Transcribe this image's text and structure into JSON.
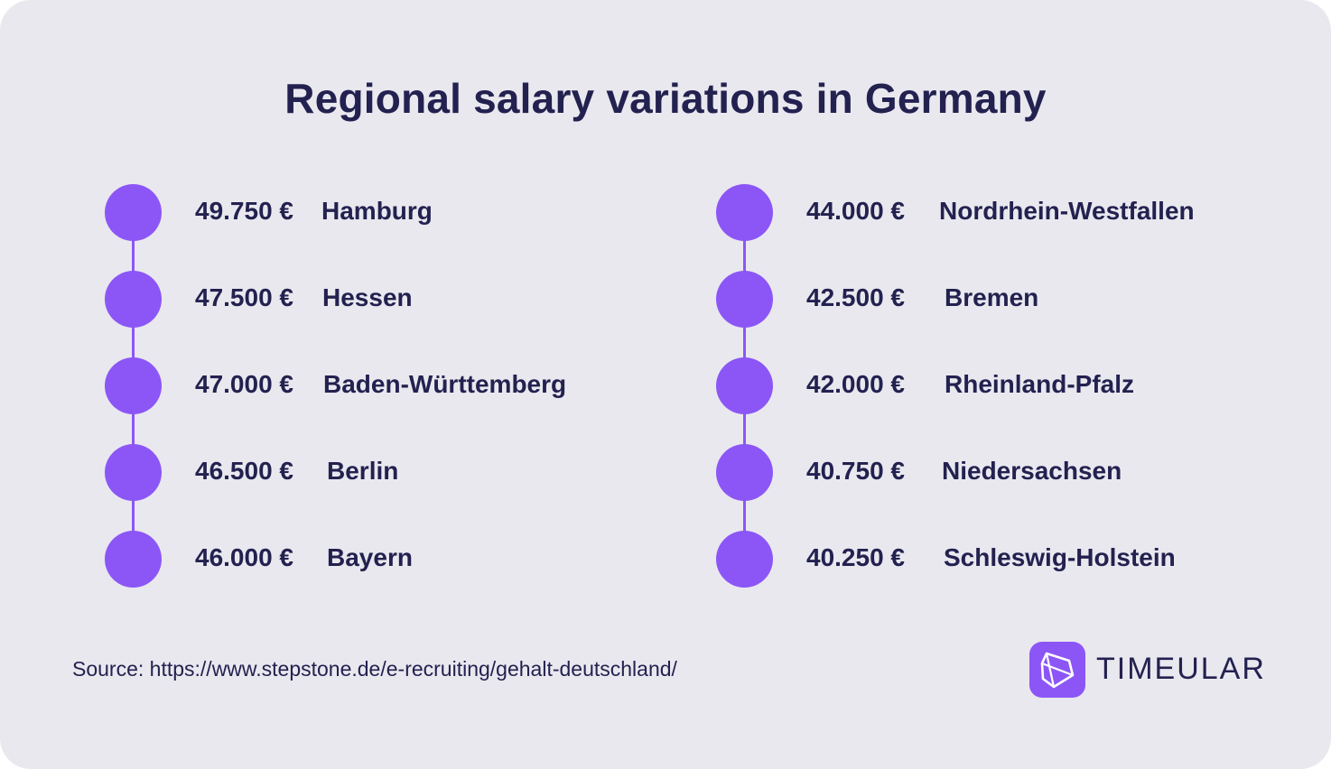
{
  "title": "Regional salary variations in Germany",
  "colors": {
    "background": "#e9e8ef",
    "accent": "#8c56f6",
    "text": "#23214f"
  },
  "left_items": [
    {
      "amount": "49.750 €",
      "region": "Hamburg"
    },
    {
      "amount": "47.500 €",
      "region": "Hessen"
    },
    {
      "amount": "47.000 €",
      "region": "Baden-Württemberg"
    },
    {
      "amount": "46.500 €",
      "region": "Berlin"
    },
    {
      "amount": "46.000 €",
      "region": "Bayern"
    }
  ],
  "right_items": [
    {
      "amount": "44.000 €",
      "region": "Nordrhein-Westfallen"
    },
    {
      "amount": "42.500 €",
      "region": "Bremen"
    },
    {
      "amount": "42.000 €",
      "region": "Rheinland-Pfalz"
    },
    {
      "amount": "40.750 €",
      "region": "Niedersachsen"
    },
    {
      "amount": "40.250 €",
      "region": "Schleswig-Holstein"
    }
  ],
  "source": "Source: https://www.stepstone.de/e-recruiting/gehalt-deutschland/",
  "logo": {
    "icon": "timeular-logo-icon",
    "text": "TIMEULAR"
  }
}
